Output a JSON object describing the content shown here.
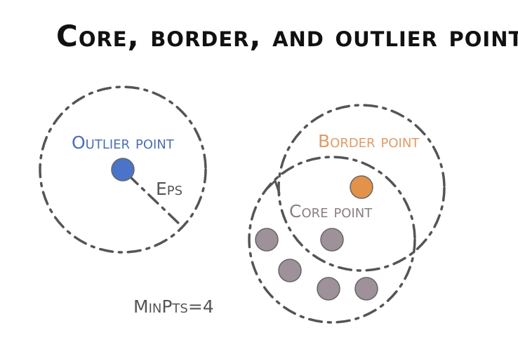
{
  "title": "Core, border, and outlier points",
  "labels": {
    "outlier": "Outlier point",
    "border": "Border point",
    "core": "Core point",
    "eps": "Eps",
    "minpts": "MinPts=4"
  },
  "colors": {
    "outlier": "#4a74c9",
    "border": "#e3924a",
    "core": "#9e9199",
    "circle": "#555555",
    "text_outlier": "#4a6fb8",
    "text_border": "#df9b65",
    "text_core": "#8a7e86",
    "text_dark": "#555555"
  }
}
